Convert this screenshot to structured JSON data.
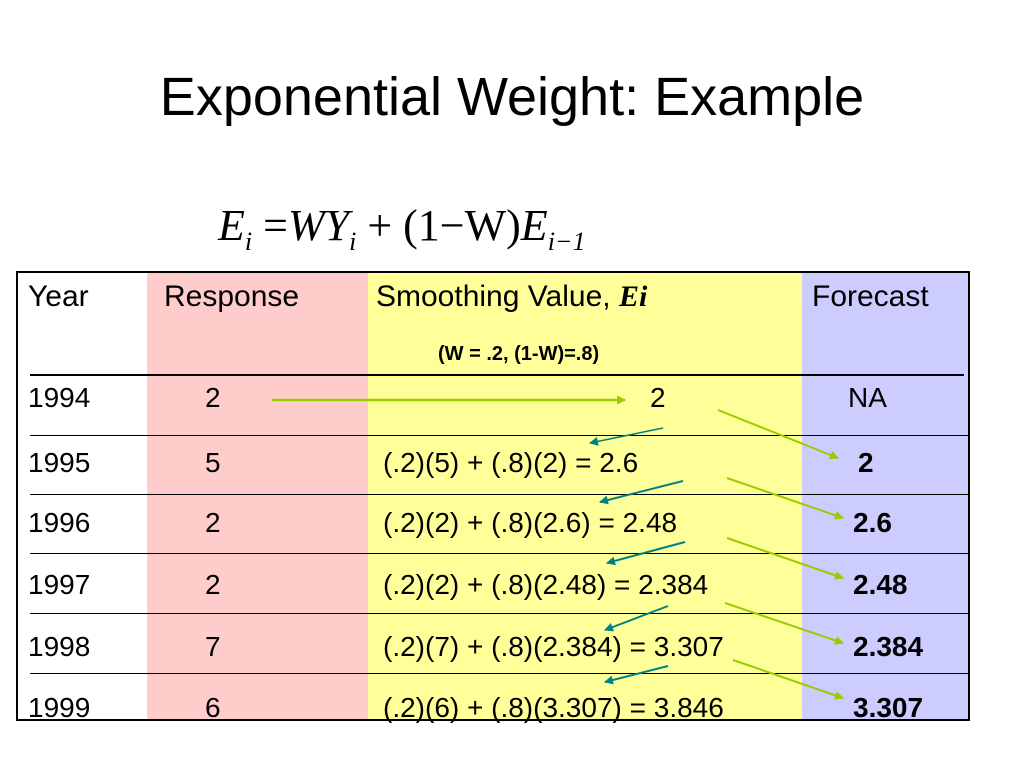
{
  "slide_title": "Exponential Weight: Example",
  "formula": {
    "lhs": "E",
    "lhs_sub": "i",
    "eq": "=",
    "term1": "WY",
    "term1_sub": "i",
    "plus": "+",
    "paren": "(1−W)",
    "term2": "E",
    "term2_sub": "i−1"
  },
  "table": {
    "headers": {
      "year": "Year",
      "response": "Response",
      "smoothing": "Smoothing Value, ",
      "smoothing_symbol": "Ei",
      "forecast": "Forecast",
      "weights_note": "(W = .2, (1-W)=.8)"
    },
    "rows": [
      {
        "year": "1994",
        "response": "2",
        "smoothing": "2",
        "forecast": "NA"
      },
      {
        "year": "1995",
        "response": "5",
        "smoothing": "(.2)(5) + (.8)(2) = 2.6",
        "forecast": "2"
      },
      {
        "year": "1996",
        "response": "2",
        "smoothing": "(.2)(2) + (.8)(2.6) = 2.48",
        "forecast": "2.6"
      },
      {
        "year": "1997",
        "response": "2",
        "smoothing": "(.2)(2) + (.8)(2.48) = 2.384",
        "forecast": "2.48"
      },
      {
        "year": "1998",
        "response": "7",
        "smoothing": "(.2)(7) + (.8)(2.384) = 3.307",
        "forecast": "2.384"
      },
      {
        "year": "1999",
        "response": "6",
        "smoothing": "(.2)(6) + (.8)(3.307) = 3.846",
        "forecast": "3.307"
      }
    ]
  },
  "colors": {
    "response_band": "#ffcccc",
    "smoothing_band": "#ffff99",
    "forecast_band": "#ccccff",
    "forecast_arrow": "#99cc00",
    "carry_arrow": "#008080"
  }
}
